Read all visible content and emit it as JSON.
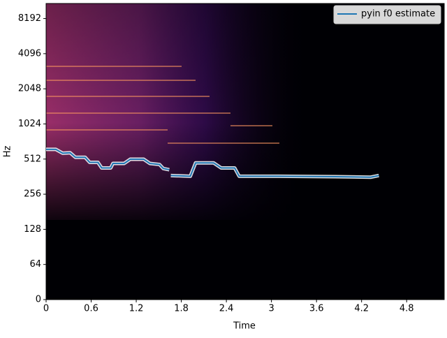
{
  "chart_data": {
    "type": "line",
    "x_label": "Time",
    "y_label": "Hz",
    "xlim": [
      0,
      5.3
    ],
    "ylim": [
      0,
      11025
    ],
    "xticks": [
      0,
      0.6,
      1.2,
      1.8,
      2.4,
      3,
      3.6,
      4.2,
      4.8
    ],
    "yticks": [
      0,
      64,
      128,
      256,
      512,
      1024,
      2048,
      4096,
      8192
    ],
    "yscale": "symlog",
    "linthresh": 64,
    "legend": "upper right",
    "x": [
      0,
      0.13,
      0.22,
      0.32,
      0.39,
      0.52,
      0.58,
      0.69,
      0.74,
      0.86,
      0.89,
      1.04,
      1.12,
      1.3,
      1.38,
      1.51,
      1.56,
      1.64,
      1.65,
      1.66,
      1.92,
      1.99,
      2.23,
      2.33,
      2.51,
      2.57,
      3.1,
      3.85,
      4.32,
      4.43
    ],
    "series": [
      {
        "name": "pyin f0 estimate",
        "color": "#1f77b4",
        "values": [
          620,
          620,
          575,
          580,
          530,
          530,
          480,
          480,
          430,
          430,
          470,
          470,
          510,
          510,
          470,
          460,
          425,
          415,
          null,
          370,
          365,
          475,
          475,
          430,
          430,
          365,
          365,
          362,
          358,
          370
        ]
      }
    ]
  }
}
